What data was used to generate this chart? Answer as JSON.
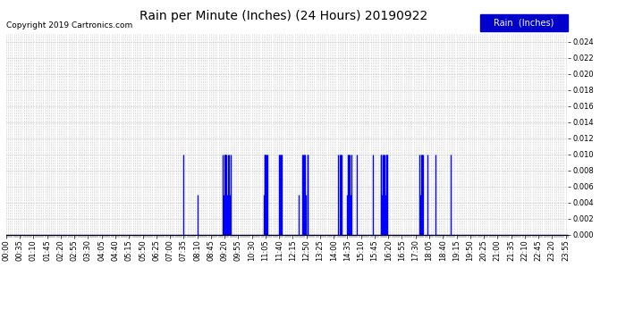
{
  "title": "Rain per Minute (Inches) (24 Hours) 20190922",
  "copyright": "Copyright 2019 Cartronics.com",
  "legend_label": "Rain  (Inches)",
  "legend_bg": "#0000cc",
  "legend_text_color": "#ffffff",
  "bar_color": "#0000ff",
  "baseline_color": "#0000ff",
  "background_color": "#ffffff",
  "grid_color": "#bbbbbb",
  "ylim": [
    0.0,
    0.025
  ],
  "yticks": [
    0.0,
    0.002,
    0.004,
    0.006,
    0.008,
    0.01,
    0.012,
    0.014,
    0.016,
    0.018,
    0.02,
    0.022,
    0.024
  ],
  "minutes_per_day": 1440,
  "rain_events": [
    {
      "minute": 455,
      "value": 0.01
    },
    {
      "minute": 490,
      "value": 0.005
    },
    {
      "minute": 555,
      "value": 0.01
    },
    {
      "minute": 557,
      "value": 0.005
    },
    {
      "minute": 559,
      "value": 0.01
    },
    {
      "minute": 561,
      "value": 0.01
    },
    {
      "minute": 563,
      "value": 0.01
    },
    {
      "minute": 565,
      "value": 0.01
    },
    {
      "minute": 567,
      "value": 0.005
    },
    {
      "minute": 569,
      "value": 0.01
    },
    {
      "minute": 571,
      "value": 0.01
    },
    {
      "minute": 573,
      "value": 0.005
    },
    {
      "minute": 575,
      "value": 0.01
    },
    {
      "minute": 660,
      "value": 0.005
    },
    {
      "minute": 662,
      "value": 0.01
    },
    {
      "minute": 664,
      "value": 0.01
    },
    {
      "minute": 666,
      "value": 0.01
    },
    {
      "minute": 668,
      "value": 0.01
    },
    {
      "minute": 670,
      "value": 0.01
    },
    {
      "minute": 700,
      "value": 0.01
    },
    {
      "minute": 702,
      "value": 0.01
    },
    {
      "minute": 704,
      "value": 0.01
    },
    {
      "minute": 706,
      "value": 0.01
    },
    {
      "minute": 750,
      "value": 0.005
    },
    {
      "minute": 760,
      "value": 0.01
    },
    {
      "minute": 762,
      "value": 0.01
    },
    {
      "minute": 764,
      "value": 0.01
    },
    {
      "minute": 766,
      "value": 0.01
    },
    {
      "minute": 768,
      "value": 0.005
    },
    {
      "minute": 772,
      "value": 0.01
    },
    {
      "minute": 774,
      "value": 0.01
    },
    {
      "minute": 850,
      "value": 0.01
    },
    {
      "minute": 856,
      "value": 0.01
    },
    {
      "minute": 858,
      "value": 0.01
    },
    {
      "minute": 860,
      "value": 0.01
    },
    {
      "minute": 875,
      "value": 0.005
    },
    {
      "minute": 877,
      "value": 0.01
    },
    {
      "minute": 879,
      "value": 0.01
    },
    {
      "minute": 881,
      "value": 0.01
    },
    {
      "minute": 883,
      "value": 0.005
    },
    {
      "minute": 885,
      "value": 0.01
    },
    {
      "minute": 900,
      "value": 0.01
    },
    {
      "minute": 940,
      "value": 0.01
    },
    {
      "minute": 960,
      "value": 0.01
    },
    {
      "minute": 962,
      "value": 0.01
    },
    {
      "minute": 964,
      "value": 0.005
    },
    {
      "minute": 966,
      "value": 0.01
    },
    {
      "minute": 968,
      "value": 0.01
    },
    {
      "minute": 970,
      "value": 0.01
    },
    {
      "minute": 972,
      "value": 0.005
    },
    {
      "minute": 974,
      "value": 0.01
    },
    {
      "minute": 976,
      "value": 0.01
    },
    {
      "minute": 978,
      "value": 0.01
    },
    {
      "minute": 1060,
      "value": 0.01
    },
    {
      "minute": 1062,
      "value": 0.005
    },
    {
      "minute": 1064,
      "value": 0.01
    },
    {
      "minute": 1066,
      "value": 0.01
    },
    {
      "minute": 1068,
      "value": 0.01
    },
    {
      "minute": 1080,
      "value": 0.01
    },
    {
      "minute": 1100,
      "value": 0.01
    },
    {
      "minute": 1140,
      "value": 0.01
    }
  ],
  "xtick_minor_interval": 5,
  "xtick_label_interval": 35,
  "title_fontsize": 10,
  "tick_fontsize": 6,
  "copyright_fontsize": 6.5,
  "legend_fontsize": 7,
  "bar_linewidth": 1.0
}
